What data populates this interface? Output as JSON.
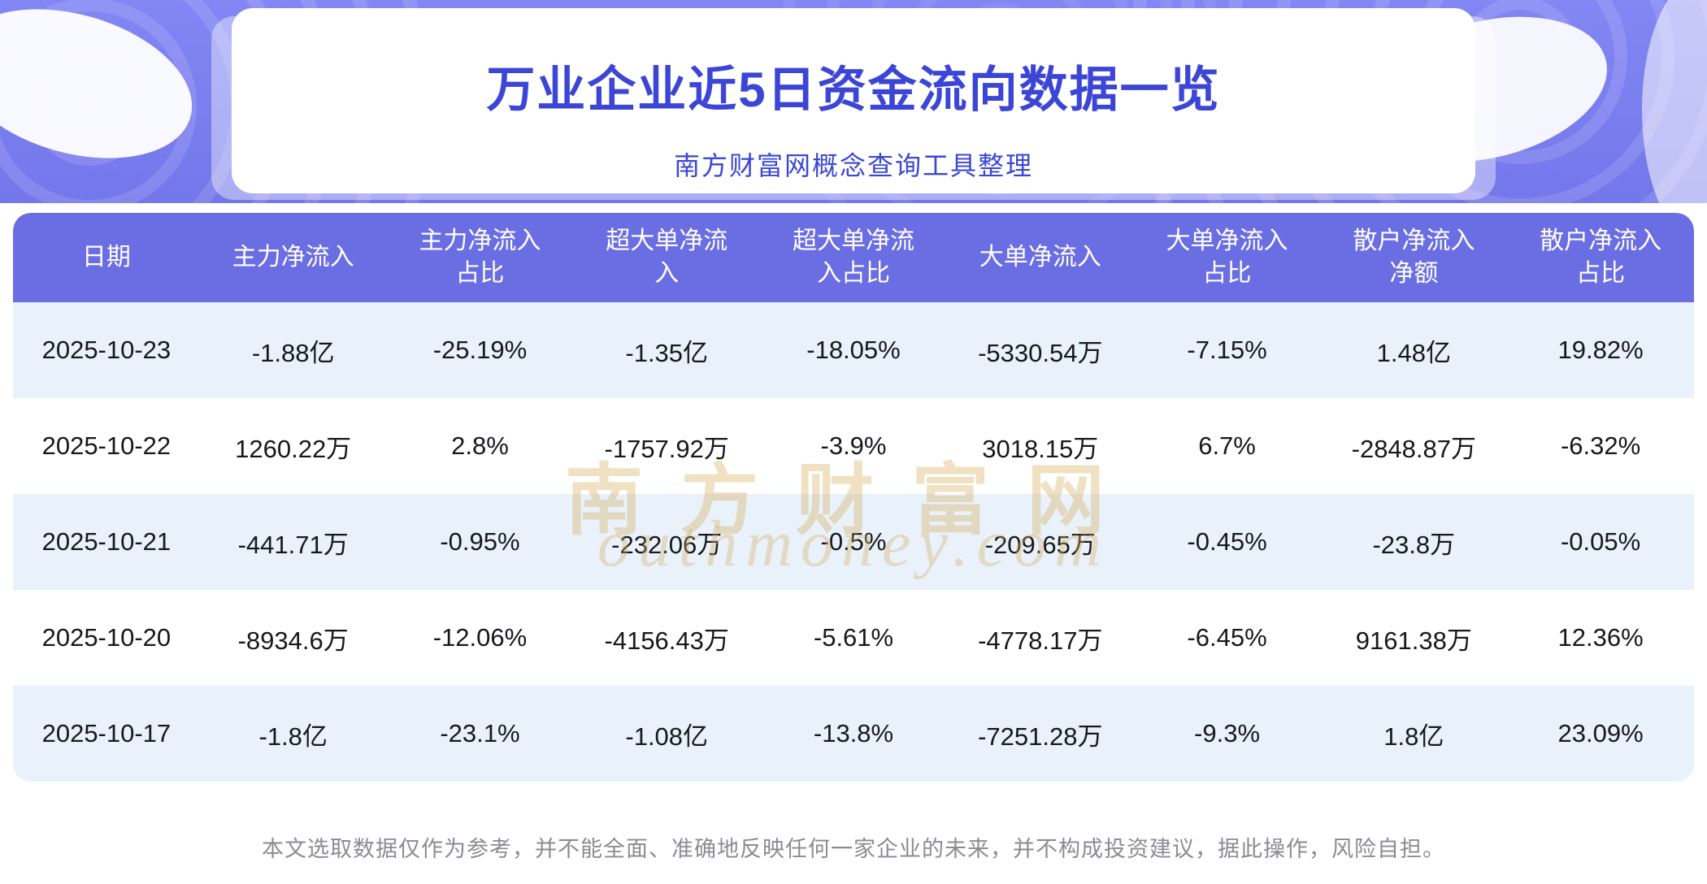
{
  "page": {
    "title": "万业企业近5日资金流向数据一览",
    "subtitle": "南方财富网概念查询工具整理",
    "footer": "本文选取数据仅作为参考，并不能全面、准确地反映任何一家企业的未来，并不构成投资建议，据此操作，风险自担。"
  },
  "watermark": {
    "cn": "南方财富网",
    "en": "outhmoney.com"
  },
  "colors": {
    "band_bg": "#7b7ef0",
    "table_header_bg": "#6a6ee2",
    "title_text": "#3b46d6",
    "row_alt_bg": "#e9f1fb",
    "body_text": "#17181c",
    "footer_text": "#8b8b93",
    "watermark_gold": "#d6b05e"
  },
  "table": {
    "headers": [
      "日期",
      "主力净流入",
      "主力净流入占比",
      "超大单净流入",
      "超大单净流入占比",
      "大单净流入",
      "大单净流入占比",
      "散户净流入净额",
      "散户净流入占比"
    ],
    "rows": [
      {
        "cells": [
          "2025-10-23",
          "-1.88亿",
          "-25.19%",
          "-1.35亿",
          "-18.05%",
          "-5330.54万",
          "-7.15%",
          "1.48亿",
          "19.82%"
        ]
      },
      {
        "cells": [
          "2025-10-22",
          "1260.22万",
          "2.8%",
          "-1757.92万",
          "-3.9%",
          "3018.15万",
          "6.7%",
          "-2848.87万",
          "-6.32%"
        ]
      },
      {
        "cells": [
          "2025-10-21",
          "-441.71万",
          "-0.95%",
          "-232.06万",
          "-0.5%",
          "-209.65万",
          "-0.45%",
          "-23.8万",
          "-0.05%"
        ]
      },
      {
        "cells": [
          "2025-10-20",
          "-8934.6万",
          "-12.06%",
          "-4156.43万",
          "-5.61%",
          "-4778.17万",
          "-6.45%",
          "9161.38万",
          "12.36%"
        ]
      },
      {
        "cells": [
          "2025-10-17",
          "-1.8亿",
          "-23.1%",
          "-1.08亿",
          "-13.8%",
          "-7251.28万",
          "-9.3%",
          "1.8亿",
          "23.09%"
        ]
      }
    ]
  },
  "chart_data": {
    "type": "table",
    "title": "万业企业近5日资金流向数据一览",
    "columns": [
      "日期",
      "主力净流入",
      "主力净流入占比",
      "超大单净流入",
      "超大单净流入占比",
      "大单净流入",
      "大单净流入占比",
      "散户净流入净额",
      "散户净流入占比"
    ],
    "rows": [
      [
        "2025-10-23",
        "-1.88亿",
        "-25.19%",
        "-1.35亿",
        "-18.05%",
        "-5330.54万",
        "-7.15%",
        "1.48亿",
        "19.82%"
      ],
      [
        "2025-10-22",
        "1260.22万",
        "2.8%",
        "-1757.92万",
        "-3.9%",
        "3018.15万",
        "6.7%",
        "-2848.87万",
        "-6.32%"
      ],
      [
        "2025-10-21",
        "-441.71万",
        "-0.95%",
        "-232.06万",
        "-0.5%",
        "-209.65万",
        "-0.45%",
        "-23.8万",
        "-0.05%"
      ],
      [
        "2025-10-20",
        "-8934.6万",
        "-12.06%",
        "-4156.43万",
        "-5.61%",
        "-4778.17万",
        "-6.45%",
        "9161.38万",
        "12.36%"
      ],
      [
        "2025-10-17",
        "-1.8亿",
        "-23.1%",
        "-1.08亿",
        "-13.8%",
        "-7251.28万",
        "-9.3%",
        "1.8亿",
        "23.09%"
      ]
    ]
  }
}
